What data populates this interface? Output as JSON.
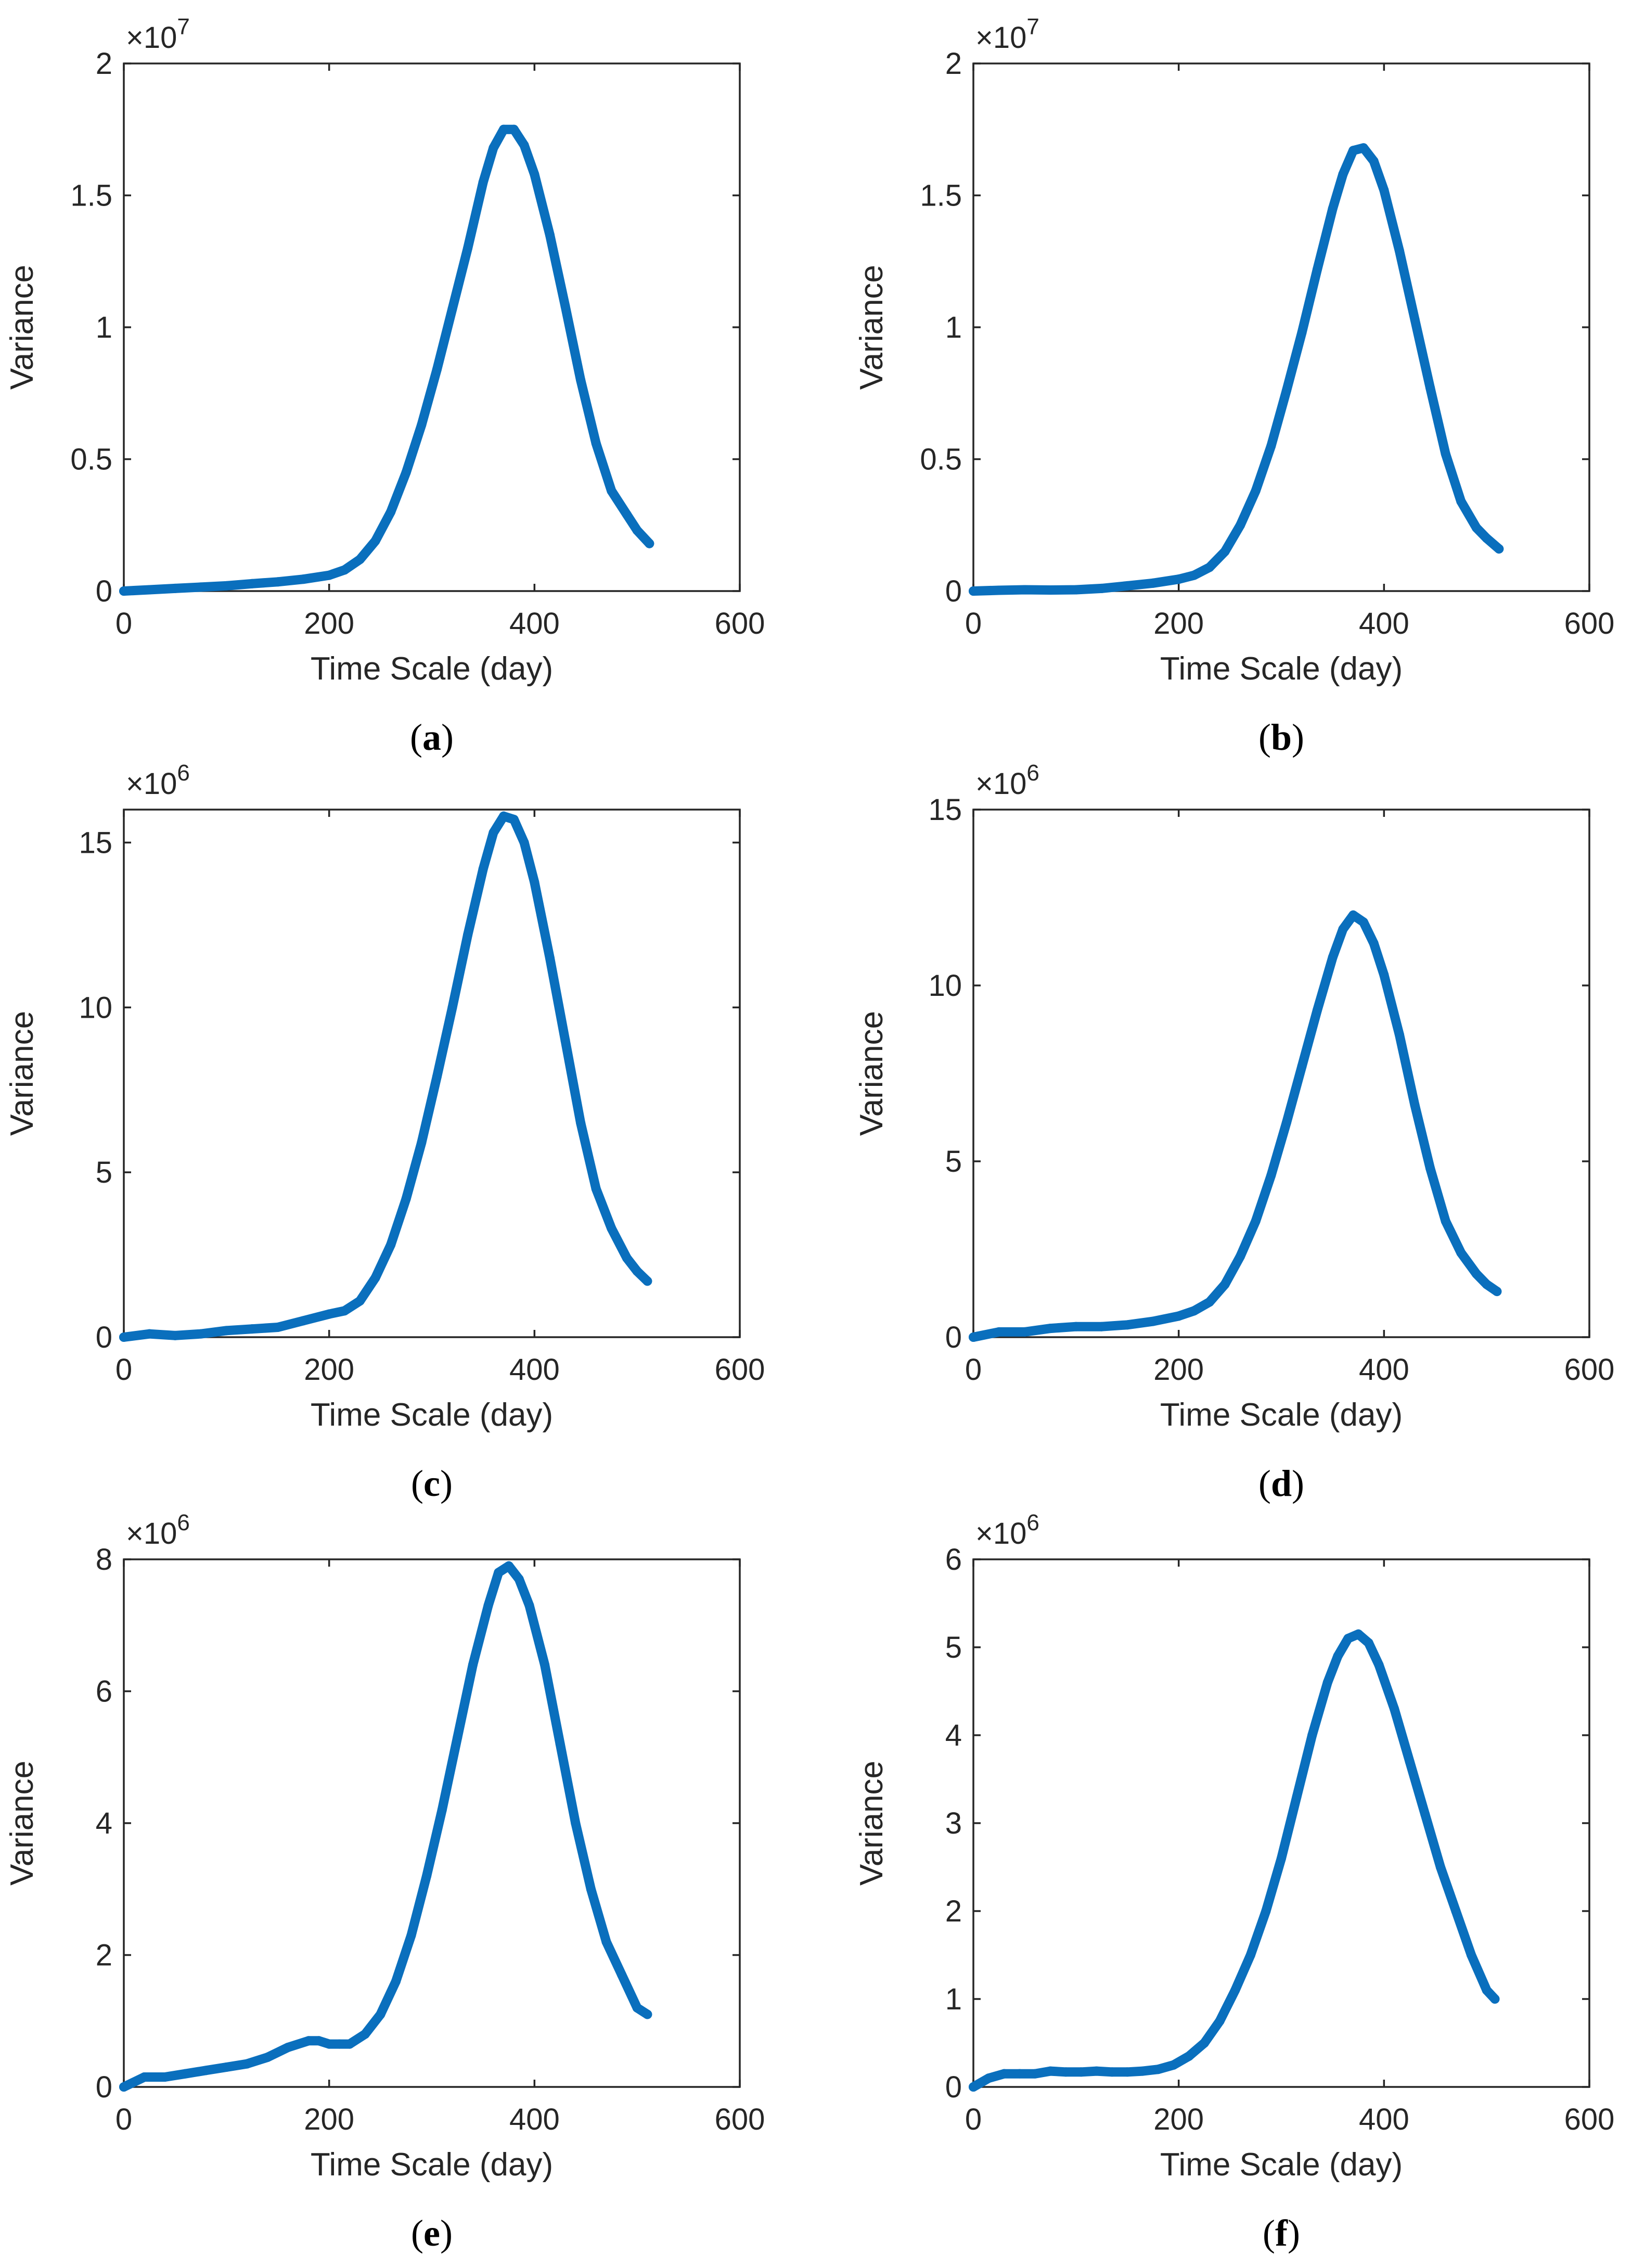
{
  "colors": {
    "series": "#0a6fbd",
    "axes": "#262626"
  },
  "chart_data": [
    {
      "type": "scatter",
      "panel": "(a)",
      "panel_letter": "a",
      "xlabel": "Time Scale (day)",
      "ylabel": "Variance",
      "exponent_base": "×10",
      "exponent_power": "7",
      "xlim": [
        0,
        600
      ],
      "ylim": [
        0,
        20000000
      ],
      "xticks": [
        0,
        200,
        400,
        600
      ],
      "xtick_labels": [
        "0",
        "200",
        "400",
        "600"
      ],
      "yticks": [
        0,
        5000000,
        10000000,
        15000000,
        20000000
      ],
      "ytick_labels": [
        "0",
        "0.5",
        "1",
        "1.5",
        "2"
      ],
      "series": [
        {
          "name": "Variance",
          "x": [
            0,
            25,
            50,
            75,
            100,
            125,
            150,
            175,
            200,
            215,
            230,
            245,
            260,
            275,
            290,
            305,
            320,
            335,
            350,
            360,
            370,
            380,
            390,
            400,
            415,
            430,
            445,
            460,
            475,
            490,
            500,
            512
          ],
          "y": [
            0,
            50000,
            100000,
            150000,
            200000,
            280000,
            350000,
            450000,
            600000,
            800000,
            1200000,
            1900000,
            3000000,
            4500000,
            6300000,
            8400000,
            10700000,
            13000000,
            15500000,
            16800000,
            17500000,
            17500000,
            16900000,
            15800000,
            13500000,
            10800000,
            8000000,
            5600000,
            3800000,
            2900000,
            2300000,
            1800000
          ]
        }
      ]
    },
    {
      "type": "scatter",
      "panel": "(b)",
      "panel_letter": "b",
      "xlabel": "Time Scale (day)",
      "ylabel": "Variance",
      "exponent_base": "×10",
      "exponent_power": "7",
      "xlim": [
        0,
        600
      ],
      "ylim": [
        0,
        20000000
      ],
      "xticks": [
        0,
        200,
        400,
        600
      ],
      "xtick_labels": [
        "0",
        "200",
        "400",
        "600"
      ],
      "yticks": [
        0,
        5000000,
        10000000,
        15000000,
        20000000
      ],
      "ytick_labels": [
        "0",
        "0.5",
        "1",
        "1.5",
        "2"
      ],
      "series": [
        {
          "name": "Variance",
          "x": [
            0,
            25,
            50,
            75,
            100,
            125,
            150,
            175,
            200,
            215,
            230,
            245,
            260,
            275,
            290,
            305,
            320,
            335,
            350,
            360,
            370,
            380,
            390,
            400,
            415,
            430,
            445,
            460,
            475,
            490,
            500,
            512
          ],
          "y": [
            0,
            30000,
            50000,
            40000,
            50000,
            100000,
            200000,
            300000,
            450000,
            600000,
            900000,
            1500000,
            2500000,
            3800000,
            5500000,
            7600000,
            9800000,
            12200000,
            14500000,
            15800000,
            16700000,
            16800000,
            16300000,
            15200000,
            12900000,
            10300000,
            7700000,
            5200000,
            3400000,
            2400000,
            2000000,
            1600000
          ]
        }
      ]
    },
    {
      "type": "scatter",
      "panel": "(c)",
      "panel_letter": "c",
      "xlabel": "Time Scale (day)",
      "ylabel": "Variance",
      "exponent_base": "×10",
      "exponent_power": "6",
      "xlim": [
        0,
        600
      ],
      "ylim": [
        0,
        16000000
      ],
      "xticks": [
        0,
        200,
        400,
        600
      ],
      "xtick_labels": [
        "0",
        "200",
        "400",
        "600"
      ],
      "yticks": [
        0,
        5000000,
        10000000,
        15000000
      ],
      "ytick_labels": [
        "0",
        "5",
        "10",
        "15"
      ],
      "series": [
        {
          "name": "Variance",
          "x": [
            0,
            25,
            50,
            75,
            100,
            125,
            150,
            175,
            200,
            215,
            230,
            245,
            260,
            275,
            290,
            305,
            320,
            335,
            350,
            360,
            370,
            380,
            390,
            400,
            415,
            430,
            445,
            460,
            475,
            490,
            500,
            510
          ],
          "y": [
            0,
            100000,
            50000,
            100000,
            200000,
            250000,
            300000,
            500000,
            700000,
            800000,
            1100000,
            1800000,
            2800000,
            4200000,
            5900000,
            7900000,
            10000000,
            12200000,
            14200000,
            15300000,
            15800000,
            15700000,
            15000000,
            13800000,
            11500000,
            9000000,
            6500000,
            4500000,
            3300000,
            2400000,
            2000000,
            1700000
          ]
        }
      ]
    },
    {
      "type": "scatter",
      "panel": "(d)",
      "panel_letter": "d",
      "xlabel": "Time Scale (day)",
      "ylabel": "Variance",
      "exponent_base": "×10",
      "exponent_power": "6",
      "xlim": [
        0,
        600
      ],
      "ylim": [
        0,
        15000000
      ],
      "xticks": [
        0,
        200,
        400,
        600
      ],
      "xtick_labels": [
        "0",
        "200",
        "400",
        "600"
      ],
      "yticks": [
        0,
        5000000,
        10000000,
        15000000
      ],
      "ytick_labels": [
        "0",
        "5",
        "10",
        "15"
      ],
      "series": [
        {
          "name": "Variance",
          "x": [
            0,
            25,
            50,
            75,
            100,
            125,
            150,
            175,
            200,
            215,
            230,
            245,
            260,
            275,
            290,
            305,
            320,
            335,
            350,
            360,
            370,
            380,
            390,
            400,
            415,
            430,
            445,
            460,
            475,
            490,
            500,
            510
          ],
          "y": [
            0,
            150000,
            150000,
            250000,
            300000,
            300000,
            350000,
            450000,
            600000,
            750000,
            1000000,
            1500000,
            2300000,
            3300000,
            4600000,
            6100000,
            7700000,
            9300000,
            10800000,
            11600000,
            12000000,
            11800000,
            11200000,
            10300000,
            8600000,
            6600000,
            4800000,
            3300000,
            2400000,
            1800000,
            1500000,
            1300000
          ]
        }
      ]
    },
    {
      "type": "scatter",
      "panel": "(e)",
      "panel_letter": "e",
      "xlabel": "Time Scale (day)",
      "ylabel": "Variance",
      "exponent_base": "×10",
      "exponent_power": "6",
      "xlim": [
        0,
        600
      ],
      "ylim": [
        0,
        8000000
      ],
      "xticks": [
        0,
        200,
        400,
        600
      ],
      "xtick_labels": [
        "0",
        "200",
        "400",
        "600"
      ],
      "yticks": [
        0,
        2000000,
        4000000,
        6000000,
        8000000
      ],
      "ytick_labels": [
        "0",
        "2",
        "4",
        "6",
        "8"
      ],
      "series": [
        {
          "name": "Variance",
          "x": [
            0,
            20,
            40,
            60,
            80,
            100,
            120,
            140,
            160,
            180,
            190,
            200,
            210,
            220,
            235,
            250,
            265,
            280,
            295,
            310,
            325,
            340,
            355,
            365,
            375,
            385,
            395,
            410,
            425,
            440,
            455,
            470,
            485,
            500,
            510
          ],
          "y": [
            0,
            150000,
            150000,
            200000,
            250000,
            300000,
            350000,
            450000,
            600000,
            700000,
            700000,
            650000,
            650000,
            650000,
            800000,
            1100000,
            1600000,
            2300000,
            3200000,
            4200000,
            5300000,
            6400000,
            7300000,
            7800000,
            7900000,
            7700000,
            7300000,
            6400000,
            5200000,
            4000000,
            3000000,
            2200000,
            1700000,
            1200000,
            1100000
          ]
        }
      ]
    },
    {
      "type": "scatter",
      "panel": "(f)",
      "panel_letter": "f",
      "xlabel": "Time Scale (day)",
      "ylabel": "Variance",
      "exponent_base": "×10",
      "exponent_power": "6",
      "xlim": [
        0,
        600
      ],
      "ylim": [
        0,
        6000000
      ],
      "xticks": [
        0,
        200,
        400,
        600
      ],
      "xtick_labels": [
        "0",
        "200",
        "400",
        "600"
      ],
      "yticks": [
        0,
        1000000,
        2000000,
        3000000,
        4000000,
        5000000,
        6000000
      ],
      "ytick_labels": [
        "0",
        "1",
        "2",
        "3",
        "4",
        "5",
        "6"
      ],
      "series": [
        {
          "name": "Variance",
          "x": [
            0,
            15,
            30,
            45,
            60,
            75,
            90,
            105,
            120,
            135,
            150,
            165,
            180,
            195,
            210,
            225,
            240,
            255,
            270,
            285,
            300,
            315,
            330,
            345,
            355,
            365,
            375,
            385,
            395,
            410,
            425,
            440,
            455,
            470,
            485,
            500,
            508
          ],
          "y": [
            0,
            100000,
            150000,
            150000,
            150000,
            180000,
            170000,
            170000,
            180000,
            170000,
            170000,
            180000,
            200000,
            250000,
            350000,
            500000,
            750000,
            1100000,
            1500000,
            2000000,
            2600000,
            3300000,
            4000000,
            4600000,
            4900000,
            5100000,
            5150000,
            5050000,
            4800000,
            4300000,
            3700000,
            3100000,
            2500000,
            2000000,
            1500000,
            1100000,
            1000000
          ]
        }
      ]
    }
  ]
}
